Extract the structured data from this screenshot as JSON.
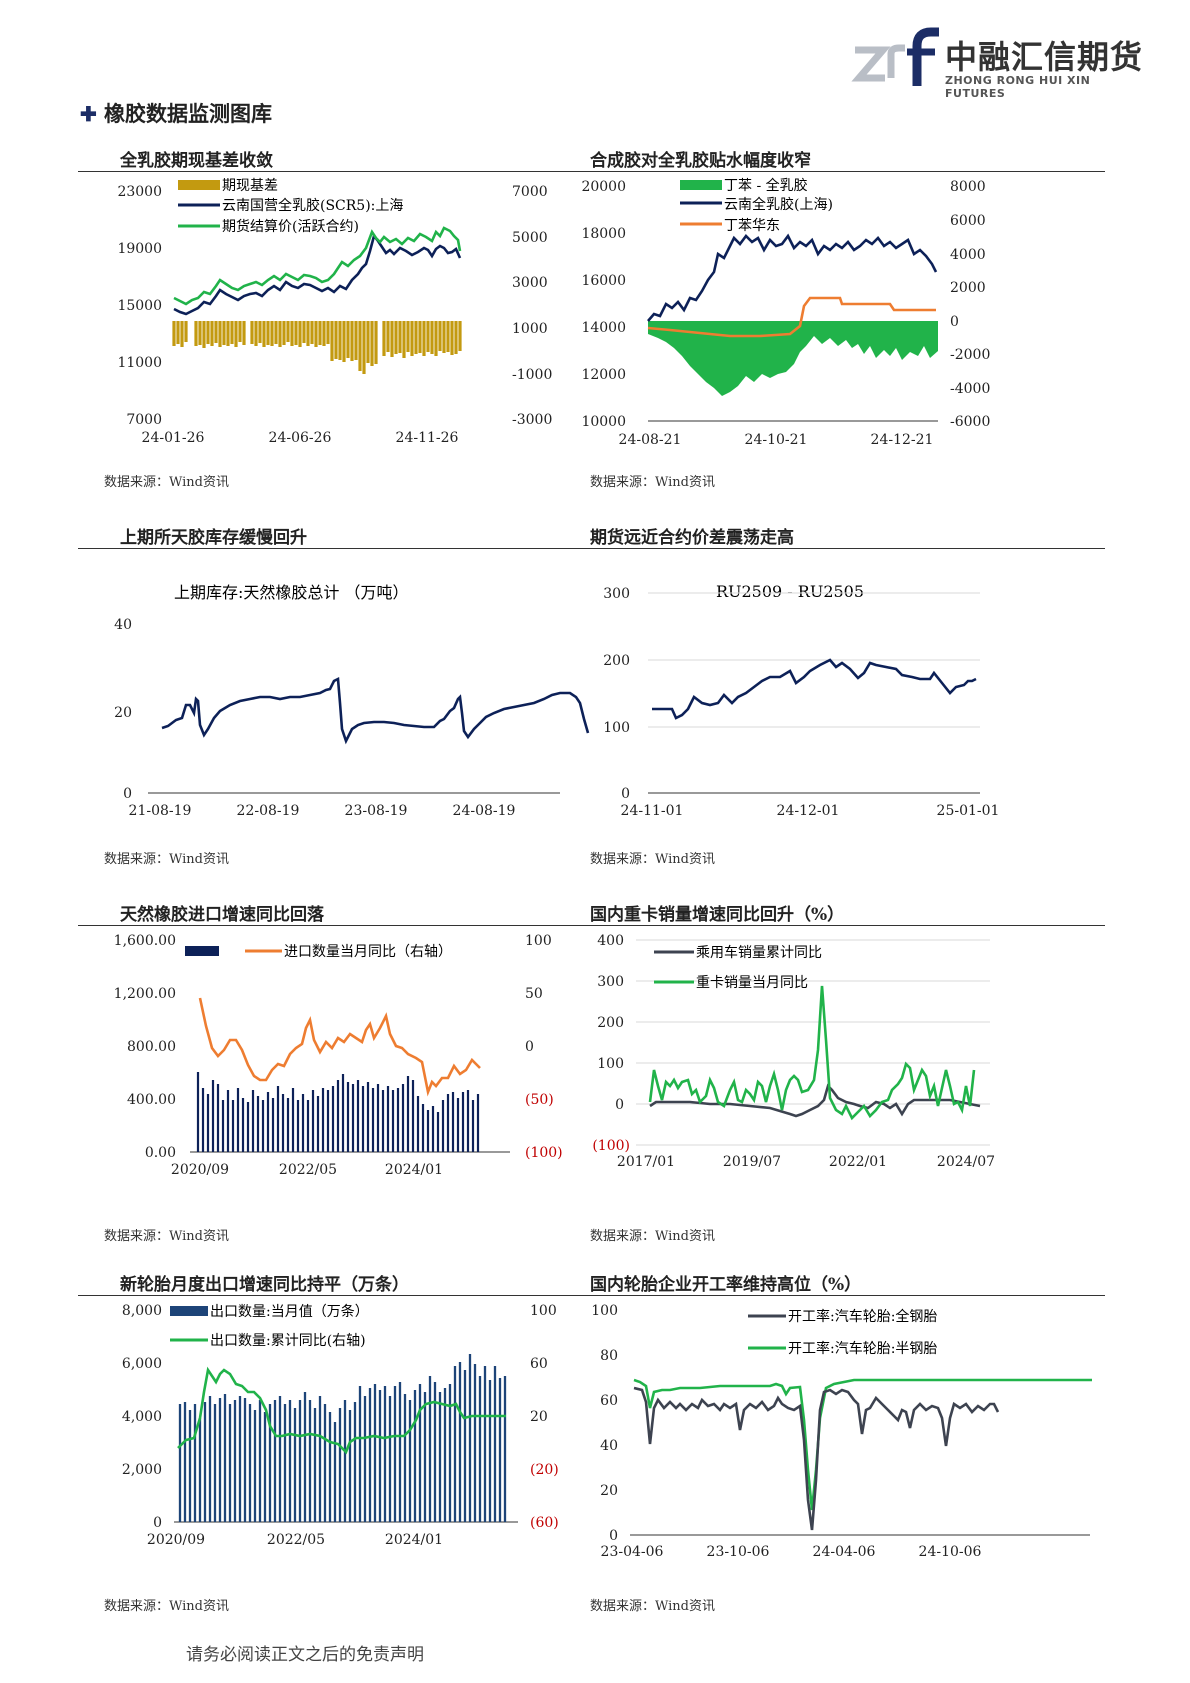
{
  "header": {
    "logo_cn": "中融汇信期货",
    "logo_en": "ZHONG RONG HUI XIN FUTURES",
    "page_title": "橡胶数据监测图库"
  },
  "footer": {
    "disclaimer": "请务必阅读正文之后的免责声明"
  },
  "colors": {
    "navy": "#0d2158",
    "green": "#21b34a",
    "gold": "#c39a10",
    "orange": "#ee7d31",
    "gray": "#3d4350",
    "red": "#c00000"
  },
  "chart_data": [
    {
      "type": "line",
      "title": "全乳胶期现基差收敛",
      "source": "数据来源：Wind资讯",
      "x_ticks": [
        "24-01-26",
        "24-06-26",
        "24-11-26"
      ],
      "y_ticks": [
        "23000",
        "19000",
        "15000",
        "11000",
        "7000"
      ],
      "y2_ticks": [
        "7000",
        "5000",
        "3000",
        "1000",
        "-1000",
        "-3000"
      ],
      "ylim": [
        7000,
        23000
      ],
      "y2lim": [
        -3000,
        7000
      ],
      "series": [
        {
          "name": "期现基差",
          "axis": "right",
          "kind": "bar"
        },
        {
          "name": "云南国营全乳胶(SCR5):上海",
          "axis": "left"
        },
        {
          "name": "期货结算价(活跃合约)",
          "axis": "left"
        }
      ]
    },
    {
      "type": "line",
      "title": "合成胶对全乳胶贴水幅度收窄",
      "source": "数据来源：Wind资讯",
      "x_ticks": [
        "24-08-21",
        "24-10-21",
        "24-12-21"
      ],
      "y_ticks": [
        "20000",
        "18000",
        "16000",
        "14000",
        "12000",
        "10000"
      ],
      "y2_ticks": [
        "8000",
        "6000",
        "4000",
        "2000",
        "0",
        "-2000",
        "-4000",
        "-6000"
      ],
      "ylim": [
        10000,
        20000
      ],
      "y2lim": [
        -6000,
        8000
      ],
      "series": [
        {
          "name": "丁苯 - 全乳胶",
          "axis": "right",
          "kind": "area"
        },
        {
          "name": "云南全乳胶(上海)",
          "axis": "left"
        },
        {
          "name": "丁苯华东",
          "axis": "left"
        }
      ]
    },
    {
      "type": "line",
      "title": "上期所天胶库存缓慢回升",
      "source": "数据来源：Wind资讯",
      "x_ticks": [
        "21-08-19",
        "22-08-19",
        "23-08-19",
        "24-08-19"
      ],
      "y_ticks": [
        "40",
        "20",
        "0"
      ],
      "ylim": [
        0,
        40
      ],
      "series": [
        {
          "name": "上期库存:天然橡胶总计 （万吨）"
        }
      ]
    },
    {
      "type": "line",
      "title": "期货远近合约价差震荡走高",
      "source": "数据来源：Wind资讯",
      "x_ticks": [
        "24-11-01",
        "24-12-01",
        "25-01-01"
      ],
      "y_ticks": [
        "300",
        "200",
        "100",
        "0"
      ],
      "ylim": [
        0,
        300
      ],
      "series": [
        {
          "name": "RU2509 - RU2505"
        }
      ]
    },
    {
      "type": "bar",
      "title": "天然橡胶进口增速同比回落",
      "source": "数据来源：Wind资讯",
      "x_ticks": [
        "2020/09",
        "2022/05",
        "2024/01"
      ],
      "y_ticks": [
        "1,600.00",
        "1,200.00",
        "800.00",
        "400.00",
        "0.00"
      ],
      "y2_ticks": [
        "100",
        "50",
        "0",
        "(50)",
        "(100)"
      ],
      "ylim": [
        0,
        1600
      ],
      "y2lim": [
        -100,
        100
      ],
      "series": [
        {
          "name": "",
          "axis": "left",
          "kind": "bar"
        },
        {
          "name": "进口数量当月同比（右轴）",
          "axis": "right"
        }
      ]
    },
    {
      "type": "line",
      "title": "国内重卡销量增速同比回升（%）",
      "source": "数据来源：Wind资讯",
      "x_ticks": [
        "2017/01",
        "2019/07",
        "2022/01",
        "2024/07"
      ],
      "y_ticks": [
        "400",
        "300",
        "200",
        "100",
        "0",
        "(100)"
      ],
      "ylim": [
        -100,
        400
      ],
      "series": [
        {
          "name": "乘用车销量累计同比"
        },
        {
          "name": "重卡销量当月同比"
        }
      ]
    },
    {
      "type": "bar",
      "title": "新轮胎月度出口增速同比持平（万条）",
      "source": "数据来源：Wind资讯",
      "x_ticks": [
        "2020/09",
        "2022/05",
        "2024/01"
      ],
      "y_ticks": [
        "8,000",
        "6,000",
        "4,000",
        "2,000",
        "0"
      ],
      "y2_ticks": [
        "100",
        "60",
        "20",
        "(20)",
        "(60)"
      ],
      "ylim": [
        0,
        8000
      ],
      "y2lim": [
        -60,
        100
      ],
      "series": [
        {
          "name": "出口数量:当月值（万条）",
          "axis": "left",
          "kind": "bar"
        },
        {
          "name": "出口数量:累计同比(右轴)",
          "axis": "right"
        }
      ]
    },
    {
      "type": "line",
      "title": "国内轮胎企业开工率维持高位（%）",
      "source": "数据来源：Wind资讯",
      "x_ticks": [
        "23-04-06",
        "23-10-06",
        "24-04-06",
        "24-10-06"
      ],
      "y_ticks": [
        "100",
        "80",
        "60",
        "40",
        "20",
        "0"
      ],
      "ylim": [
        0,
        100
      ],
      "series": [
        {
          "name": "开工率:汽车轮胎:全钢胎"
        },
        {
          "name": "开工率:汽车轮胎:半钢胎"
        }
      ]
    }
  ]
}
